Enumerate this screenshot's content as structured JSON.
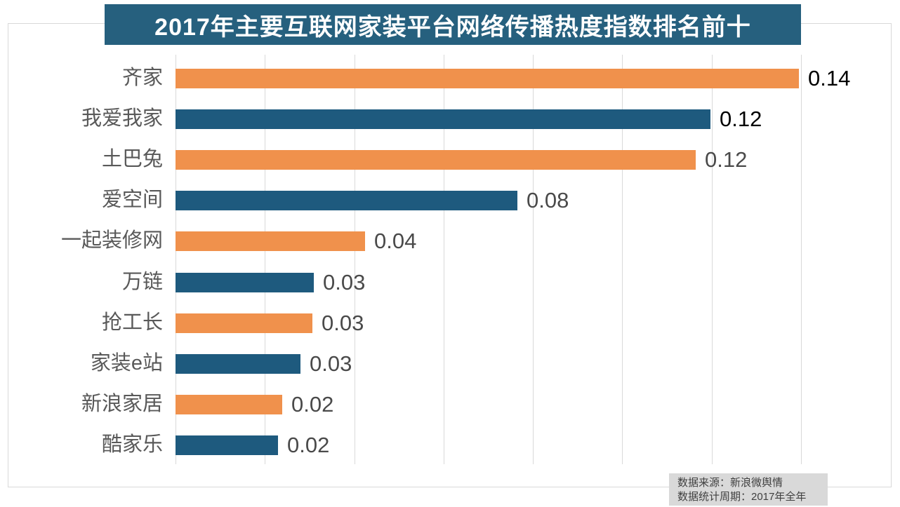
{
  "title": "2017年主要互联网家装平台网络传播热度指数排名前十",
  "source_note": {
    "line1": "数据来源：新浪微舆情",
    "line2": "数据统计周期：2017年全年"
  },
  "colors": {
    "banner_bg": "#26607E",
    "banner_text": "#FFFFFF",
    "orange_bar": "#F0914C",
    "blue_bar": "#1E5A7E",
    "gridline": "#D9D9D9",
    "frame_border": "#D9D9D9",
    "category_label": "#595959",
    "source_bg": "#D9D9D9",
    "source_text": "#404040"
  },
  "chart_data": {
    "type": "bar",
    "orientation": "horizontal",
    "title": "2017年主要互联网家装平台网络传播热度指数排名前十",
    "categories": [
      "齐家",
      "我爱我家",
      "土巴兔",
      "爱空间",
      "一起装修网",
      "万链",
      "抢工长",
      "家装e站",
      "新浪家居",
      "酷家乐"
    ],
    "values": [
      0.14,
      0.12,
      0.12,
      0.08,
      0.04,
      0.03,
      0.03,
      0.03,
      0.02,
      0.02
    ],
    "value_labels": [
      "0.14",
      "0.12",
      "0.12",
      "0.08",
      "0.04",
      "0.03",
      "0.03",
      "0.03",
      "0.02",
      "0.02"
    ],
    "precise_values": [
      0.1395,
      0.1198,
      0.1165,
      0.0765,
      0.0424,
      0.0309,
      0.0306,
      0.028,
      0.0239,
      0.0229
    ],
    "bar_colors": [
      "#F0914C",
      "#1E5A7E",
      "#F0914C",
      "#1E5A7E",
      "#F0914C",
      "#1E5A7E",
      "#F0914C",
      "#1E5A7E",
      "#F0914C",
      "#1E5A7E"
    ],
    "value_label_colors": [
      "#000000",
      "#000000",
      "#4A4A4A",
      "#4A4A4A",
      "#4A4A4A",
      "#4A4A4A",
      "#4A4A4A",
      "#4A4A4A",
      "#4A4A4A",
      "#4A4A4A"
    ],
    "xlabel": "",
    "ylabel": "",
    "xlim": [
      0,
      0.14
    ],
    "grid_step": 0.02,
    "grid": true,
    "legend": false
  }
}
